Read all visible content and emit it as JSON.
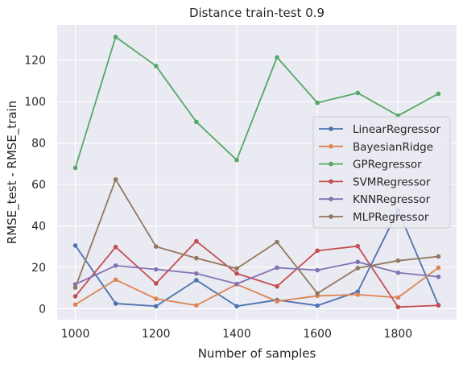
{
  "chart_data": {
    "type": "line",
    "title": "Distance train-test 0.9",
    "xlabel": "Number of samples",
    "ylabel": "RMSE_test - RMSE_train",
    "x": [
      1000,
      1100,
      1200,
      1300,
      1400,
      1500,
      1600,
      1700,
      1800,
      1900
    ],
    "xticks": [
      1000,
      1200,
      1400,
      1600,
      1800
    ],
    "yticks": [
      0,
      20,
      40,
      60,
      80,
      100,
      120
    ],
    "xlim": [
      955,
      1945
    ],
    "ylim": [
      -5.3,
      137
    ],
    "grid": true,
    "legend_position": "center-right",
    "series": [
      {
        "name": "LinearRegressor",
        "color": "#4C72B0",
        "values": [
          30.5,
          2.5,
          1.2,
          13.8,
          1.2,
          4.2,
          1.5,
          8.2,
          47.5,
          1.8
        ]
      },
      {
        "name": "BayesianRidge",
        "color": "#DD8452",
        "values": [
          2.0,
          14.0,
          4.8,
          1.6,
          11.8,
          3.6,
          6.2,
          6.8,
          5.4,
          19.8
        ]
      },
      {
        "name": "GPRegressor",
        "color": "#55A868",
        "values": [
          68.0,
          131.2,
          117.2,
          90.2,
          71.8,
          121.4,
          99.4,
          104.2,
          93.2,
          103.8
        ]
      },
      {
        "name": "SVMRegressor",
        "color": "#C44E52",
        "values": [
          6.0,
          29.8,
          12.2,
          32.6,
          17.0,
          10.8,
          28.0,
          30.2,
          0.8,
          1.6
        ]
      },
      {
        "name": "KNNRegressor",
        "color": "#8172B3",
        "values": [
          11.8,
          20.8,
          19.0,
          17.0,
          12.0,
          19.8,
          18.6,
          22.6,
          17.4,
          15.4
        ]
      },
      {
        "name": "MLPRegressor",
        "color": "#937860",
        "values": [
          10.2,
          62.4,
          30.0,
          24.4,
          19.4,
          32.2,
          7.4,
          19.6,
          23.2,
          25.2
        ]
      }
    ]
  }
}
